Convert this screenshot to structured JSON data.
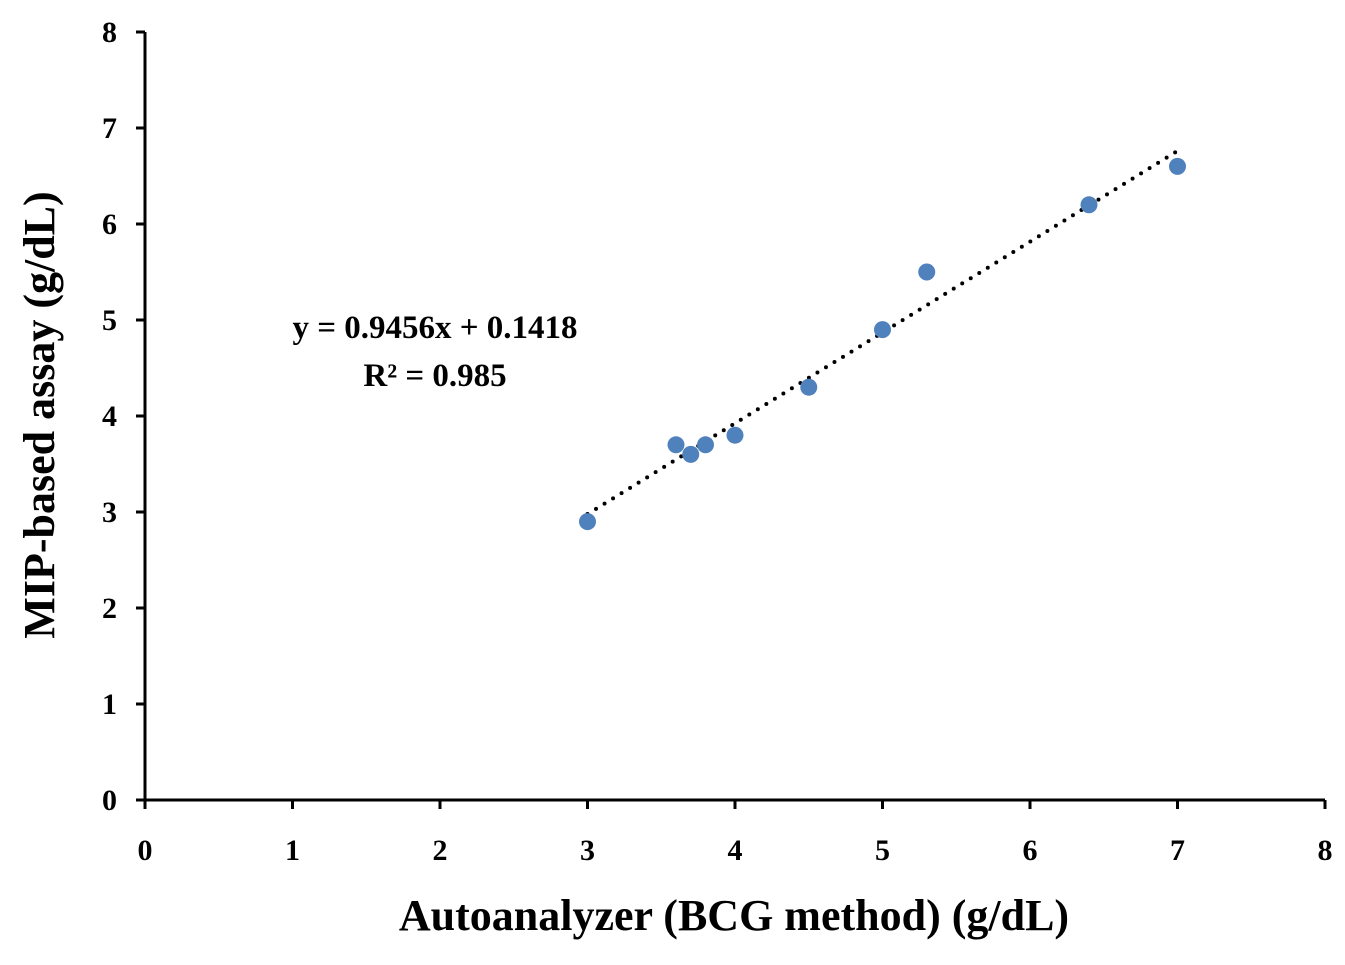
{
  "chart_data": {
    "type": "scatter",
    "xlabel": "Autoanalyzer (BCG method) (g/dL)",
    "ylabel": "MIP-based assay (g/dL)",
    "xlim": [
      0,
      8
    ],
    "ylim": [
      0,
      8
    ],
    "x_ticks": [
      "0",
      "1",
      "2",
      "3",
      "4",
      "5",
      "6",
      "7",
      "8"
    ],
    "y_ticks": [
      "0",
      "1",
      "2",
      "3",
      "4",
      "5",
      "6",
      "7",
      "8"
    ],
    "grid": false,
    "legend": "none",
    "marker_color": "#4f81bd",
    "series": [
      {
        "x": [
          3.0,
          3.6,
          3.7,
          3.8,
          4.0,
          4.5,
          5.0,
          5.3,
          6.4,
          7.0
        ],
        "y": [
          2.9,
          3.7,
          3.6,
          3.7,
          3.8,
          4.3,
          4.9,
          5.5,
          6.2,
          6.6
        ]
      }
    ],
    "trendline": {
      "style": "dotted",
      "slope": 0.9456,
      "intercept": 0.1418,
      "x_range": [
        3.0,
        7.0
      ]
    },
    "annotations": {
      "equation": "y = 0.9456x + 0.1418",
      "r_squared": "R² = 0.985"
    }
  }
}
